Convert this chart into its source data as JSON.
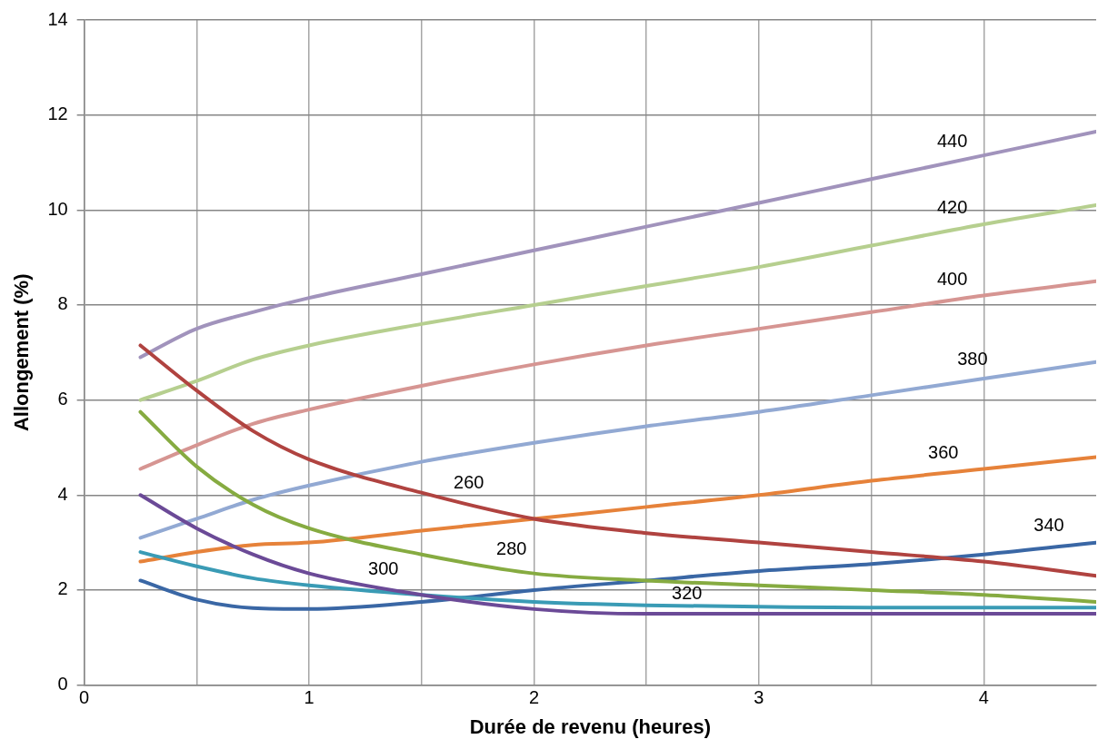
{
  "chart_data": {
    "type": "line",
    "xlabel": "Durée de revenu (heures)",
    "ylabel": "Allongement (%)",
    "x": [
      0.25,
      0.5,
      0.75,
      1,
      1.5,
      2,
      2.5,
      3,
      3.5,
      4,
      4.5
    ],
    "series": [
      {
        "name": "260",
        "color": "#b04340",
        "values": [
          7.15,
          6.2,
          5.35,
          4.75,
          4.05,
          3.5,
          3.2,
          3.0,
          2.8,
          2.6,
          2.3
        ]
      },
      {
        "name": "280",
        "color": "#86ab41",
        "values": [
          5.75,
          4.6,
          3.8,
          3.3,
          2.75,
          2.35,
          2.2,
          2.1,
          2.0,
          1.9,
          1.75
        ]
      },
      {
        "name": "300",
        "color": "#6b4a97",
        "values": [
          4.0,
          3.3,
          2.75,
          2.35,
          1.9,
          1.6,
          1.5,
          1.5,
          1.5,
          1.5,
          1.5
        ]
      },
      {
        "name": "320",
        "color": "#3a9bb5",
        "values": [
          2.8,
          2.5,
          2.25,
          2.1,
          1.9,
          1.75,
          1.68,
          1.65,
          1.63,
          1.63,
          1.63
        ]
      },
      {
        "name": "340",
        "color": "#3a67a5",
        "values": [
          2.2,
          1.8,
          1.62,
          1.6,
          1.75,
          2.0,
          2.2,
          2.4,
          2.55,
          2.75,
          3.0
        ]
      },
      {
        "name": "360",
        "color": "#e6823a",
        "values": [
          2.6,
          2.8,
          2.95,
          3.0,
          3.25,
          3.5,
          3.75,
          4.0,
          4.3,
          4.55,
          4.8
        ]
      },
      {
        "name": "380",
        "color": "#92a9d3",
        "values": [
          3.1,
          3.5,
          3.9,
          4.2,
          4.7,
          5.1,
          5.45,
          5.75,
          6.1,
          6.45,
          6.8
        ]
      },
      {
        "name": "400",
        "color": "#d69592",
        "values": [
          4.55,
          5.05,
          5.5,
          5.8,
          6.3,
          6.75,
          7.15,
          7.5,
          7.85,
          8.2,
          8.5
        ]
      },
      {
        "name": "420",
        "color": "#b6cf8f",
        "values": [
          6.0,
          6.4,
          6.85,
          7.15,
          7.6,
          8.0,
          8.4,
          8.8,
          9.25,
          9.7,
          10.1
        ]
      },
      {
        "name": "440",
        "color": "#a193bc",
        "values": [
          6.9,
          7.5,
          7.85,
          8.15,
          8.65,
          9.15,
          9.65,
          10.15,
          10.65,
          11.15,
          11.65
        ]
      }
    ],
    "xlim": [
      0,
      4.5
    ],
    "xticks": [
      0,
      {
        "value": 0.5,
        "label": null
      },
      1,
      {
        "value": 1.5,
        "label": null
      },
      2,
      {
        "value": 2.5,
        "label": null
      },
      3,
      {
        "value": 3.5,
        "label": null
      },
      4
    ],
    "ylim": [
      0,
      14
    ],
    "yticks": [
      0,
      2,
      4,
      6,
      8,
      10,
      12,
      14
    ],
    "grid": true,
    "legend": false,
    "marker": "none",
    "line_style": "solid"
  }
}
